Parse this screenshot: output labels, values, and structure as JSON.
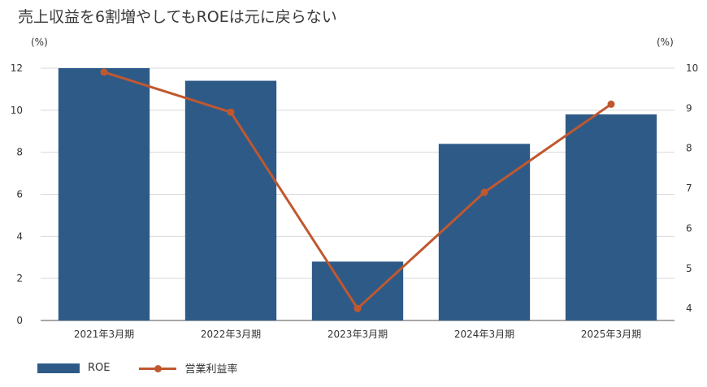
{
  "title": "売上収益を6割増やしてもROEは元に戻らない",
  "chart_data": {
    "type": "bar",
    "categories": [
      "2021年3月期",
      "2022年3月期",
      "2023年3月期",
      "2024年3月期",
      "2025年3月期"
    ],
    "series": [
      {
        "name": "ROE",
        "type": "bar",
        "axis": "left",
        "values": [
          12.0,
          11.4,
          2.8,
          8.4,
          9.8
        ],
        "color": "#2e5a88"
      },
      {
        "name": "営業利益率",
        "type": "line",
        "axis": "right",
        "values": [
          9.9,
          8.9,
          4.0,
          6.9,
          9.1
        ],
        "color": "#c0582f"
      }
    ],
    "y_left": {
      "unit": "(%)",
      "ticks": [
        "0",
        "2",
        "4",
        "6",
        "8",
        "10",
        "12"
      ],
      "ylim": [
        0,
        12
      ]
    },
    "y_right": {
      "unit": "(%)",
      "ticks": [
        "4",
        "5",
        "6",
        "7",
        "8",
        "9",
        "10"
      ],
      "ylim": [
        3.7,
        10
      ]
    },
    "grid": true,
    "legend_position": "bottom-left"
  }
}
